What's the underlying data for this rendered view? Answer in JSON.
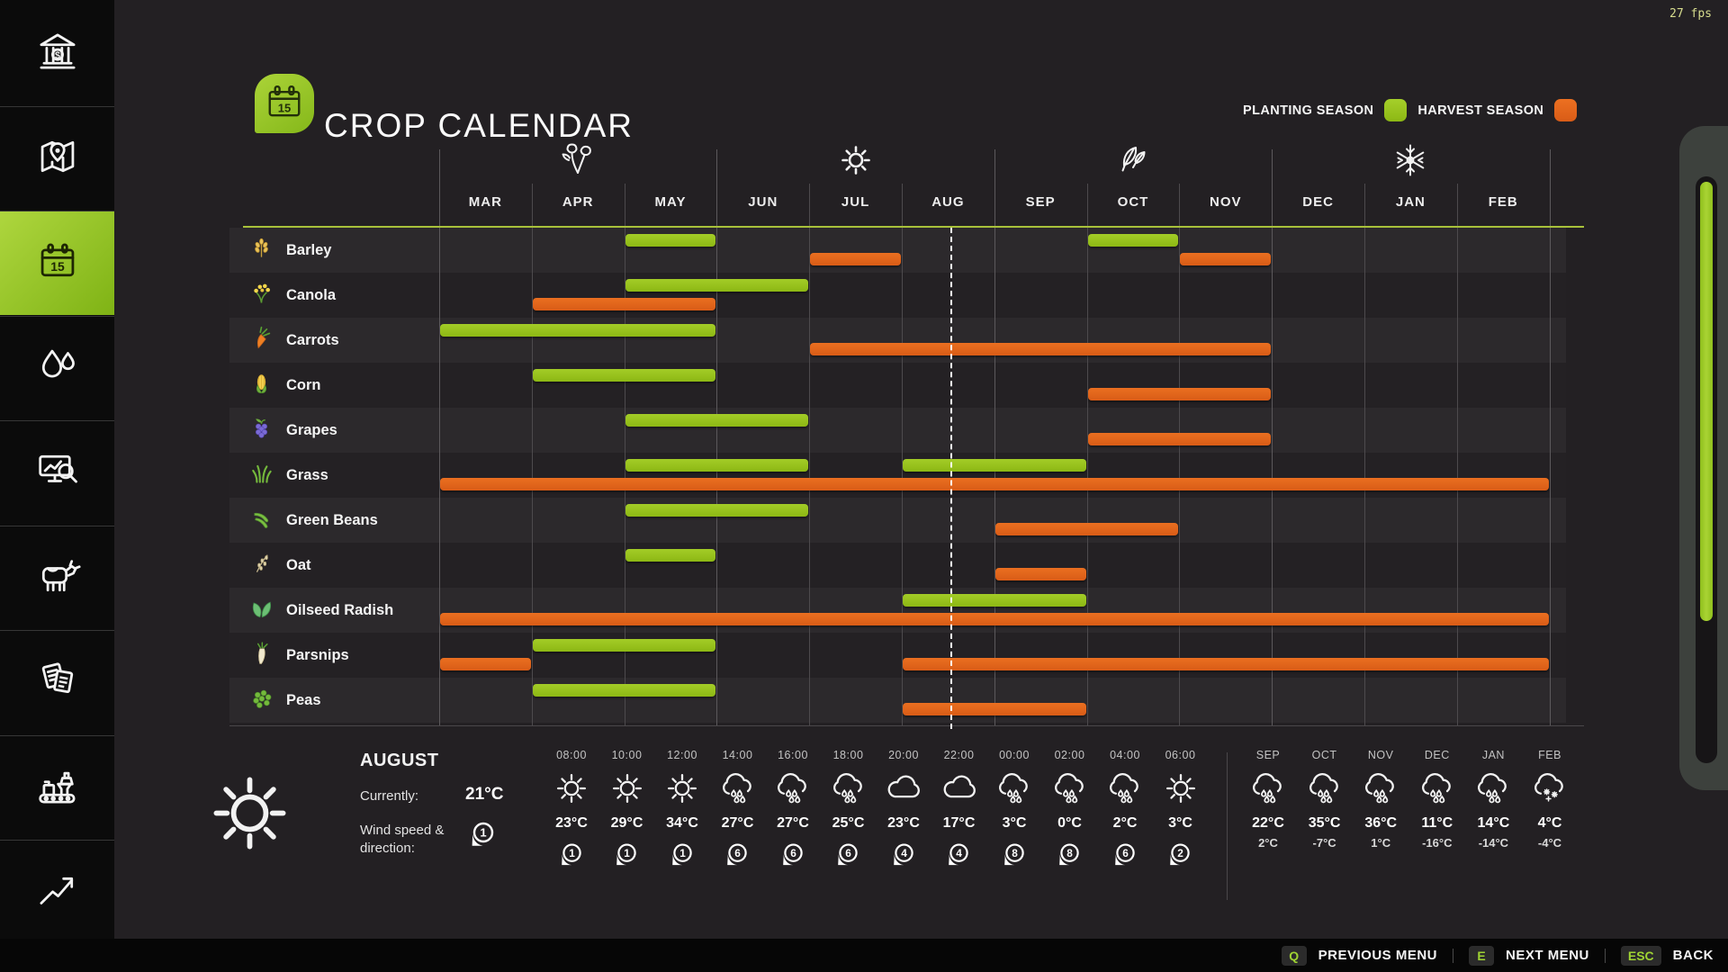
{
  "fps": "27 fps",
  "header": {
    "title": "CROP CALENDAR",
    "icon": "calendar-badge"
  },
  "legend": {
    "planting_label": "PLANTING SEASON",
    "harvest_label": "HARVEST SEASON",
    "planting_color": "#9cc21e",
    "harvest_color": "#e2661c"
  },
  "sidebar": {
    "items": [
      {
        "id": "finances",
        "icon": "bank",
        "selected": false
      },
      {
        "id": "map",
        "icon": "map",
        "selected": false
      },
      {
        "id": "calendar",
        "icon": "calendar",
        "selected": true
      },
      {
        "id": "water",
        "icon": "water-drops",
        "selected": false
      },
      {
        "id": "statistics",
        "icon": "statistics",
        "selected": false
      },
      {
        "id": "animals",
        "icon": "cow",
        "selected": false
      },
      {
        "id": "contracts",
        "icon": "contracts",
        "selected": false
      },
      {
        "id": "production",
        "icon": "production",
        "selected": false
      },
      {
        "id": "prices",
        "icon": "trending-up",
        "selected": false
      }
    ]
  },
  "chart_data": {
    "type": "gantt",
    "title": "CROP CALENDAR",
    "months": [
      "MAR",
      "APR",
      "MAY",
      "JUN",
      "JUL",
      "AUG",
      "SEP",
      "OCT",
      "NOV",
      "DEC",
      "JAN",
      "FEB"
    ],
    "season_markers": [
      {
        "icon": "spring-flowers",
        "month_center": 1.5
      },
      {
        "icon": "summer-sun",
        "month_center": 4.5
      },
      {
        "icon": "autumn-leaves",
        "month_center": 7.5
      },
      {
        "icon": "winter-snowflake",
        "month_center": 10.5
      }
    ],
    "current_time_month_position": 5.53,
    "legend": [
      "PLANTING SEASON",
      "HARVEST SEASON"
    ],
    "crops": [
      {
        "name": "Barley",
        "icon": "barley",
        "planting": [
          [
            2,
            3
          ],
          [
            7,
            8
          ]
        ],
        "harvest": [
          [
            4,
            5
          ],
          [
            8,
            9
          ]
        ]
      },
      {
        "name": "Canola",
        "icon": "canola",
        "planting": [
          [
            2,
            4
          ]
        ],
        "harvest": [
          [
            1,
            3
          ]
        ]
      },
      {
        "name": "Carrots",
        "icon": "carrots",
        "planting": [
          [
            0,
            3
          ]
        ],
        "harvest": [
          [
            4,
            9
          ]
        ]
      },
      {
        "name": "Corn",
        "icon": "corn",
        "planting": [
          [
            1,
            3
          ]
        ],
        "harvest": [
          [
            7,
            9
          ]
        ]
      },
      {
        "name": "Grapes",
        "icon": "grapes",
        "planting": [
          [
            2,
            4
          ]
        ],
        "harvest": [
          [
            7,
            9
          ]
        ]
      },
      {
        "name": "Grass",
        "icon": "grass",
        "planting": [
          [
            2,
            4
          ],
          [
            5,
            7
          ]
        ],
        "harvest": [
          [
            0,
            12
          ]
        ]
      },
      {
        "name": "Green Beans",
        "icon": "green-beans",
        "planting": [
          [
            2,
            4
          ]
        ],
        "harvest": [
          [
            6,
            8
          ]
        ]
      },
      {
        "name": "Oat",
        "icon": "oat",
        "planting": [
          [
            2,
            3
          ]
        ],
        "harvest": [
          [
            6,
            7
          ]
        ]
      },
      {
        "name": "Oilseed Radish",
        "icon": "oilseed-radish",
        "planting": [
          [
            5,
            7
          ]
        ],
        "harvest": [
          [
            0,
            12
          ]
        ]
      },
      {
        "name": "Parsnips",
        "icon": "parsnips",
        "planting": [
          [
            1,
            3
          ]
        ],
        "harvest": [
          [
            0,
            1
          ],
          [
            5,
            12
          ]
        ]
      },
      {
        "name": "Peas",
        "icon": "peas",
        "planting": [
          [
            1,
            3
          ]
        ],
        "harvest": [
          [
            5,
            7
          ]
        ]
      }
    ]
  },
  "weather": {
    "current": {
      "month": "AUGUST",
      "icon": "sun",
      "currently_label": "Currently:",
      "currently_value": "21°C",
      "wind_label_line1": "Wind speed &",
      "wind_label_line2": "direction:",
      "wind_value": "1"
    },
    "hourly": [
      {
        "time": "08:00",
        "icon": "sun",
        "temp": "23°C",
        "wind": "1"
      },
      {
        "time": "10:00",
        "icon": "sun",
        "temp": "29°C",
        "wind": "1"
      },
      {
        "time": "12:00",
        "icon": "sun",
        "temp": "34°C",
        "wind": "1"
      },
      {
        "time": "14:00",
        "icon": "rain",
        "temp": "27°C",
        "wind": "6"
      },
      {
        "time": "16:00",
        "icon": "rain",
        "temp": "27°C",
        "wind": "6"
      },
      {
        "time": "18:00",
        "icon": "rain",
        "temp": "25°C",
        "wind": "6"
      },
      {
        "time": "20:00",
        "icon": "cloud",
        "temp": "23°C",
        "wind": "4"
      },
      {
        "time": "22:00",
        "icon": "cloud",
        "temp": "17°C",
        "wind": "4"
      },
      {
        "time": "00:00",
        "icon": "rain",
        "temp": "3°C",
        "wind": "8"
      },
      {
        "time": "02:00",
        "icon": "rain",
        "temp": "0°C",
        "wind": "8"
      },
      {
        "time": "04:00",
        "icon": "rain",
        "temp": "2°C",
        "wind": "6"
      },
      {
        "time": "06:00",
        "icon": "sun",
        "temp": "3°C",
        "wind": "2"
      }
    ],
    "monthly": [
      {
        "month": "SEP",
        "icon": "rain",
        "high": "22°C",
        "low": "2°C"
      },
      {
        "month": "OCT",
        "icon": "rain",
        "high": "35°C",
        "low": "-7°C"
      },
      {
        "month": "NOV",
        "icon": "rain",
        "high": "36°C",
        "low": "1°C"
      },
      {
        "month": "DEC",
        "icon": "rain",
        "high": "11°C",
        "low": "-16°C"
      },
      {
        "month": "JAN",
        "icon": "rain",
        "high": "14°C",
        "low": "-14°C"
      },
      {
        "month": "FEB",
        "icon": "snow",
        "high": "4°C",
        "low": "-4°C"
      }
    ]
  },
  "bottom_bar": {
    "items": [
      {
        "key": "Q",
        "label": "PREVIOUS MENU"
      },
      {
        "key": "E",
        "label": "NEXT MENU"
      },
      {
        "key": "ESC",
        "label": "BACK"
      }
    ]
  }
}
